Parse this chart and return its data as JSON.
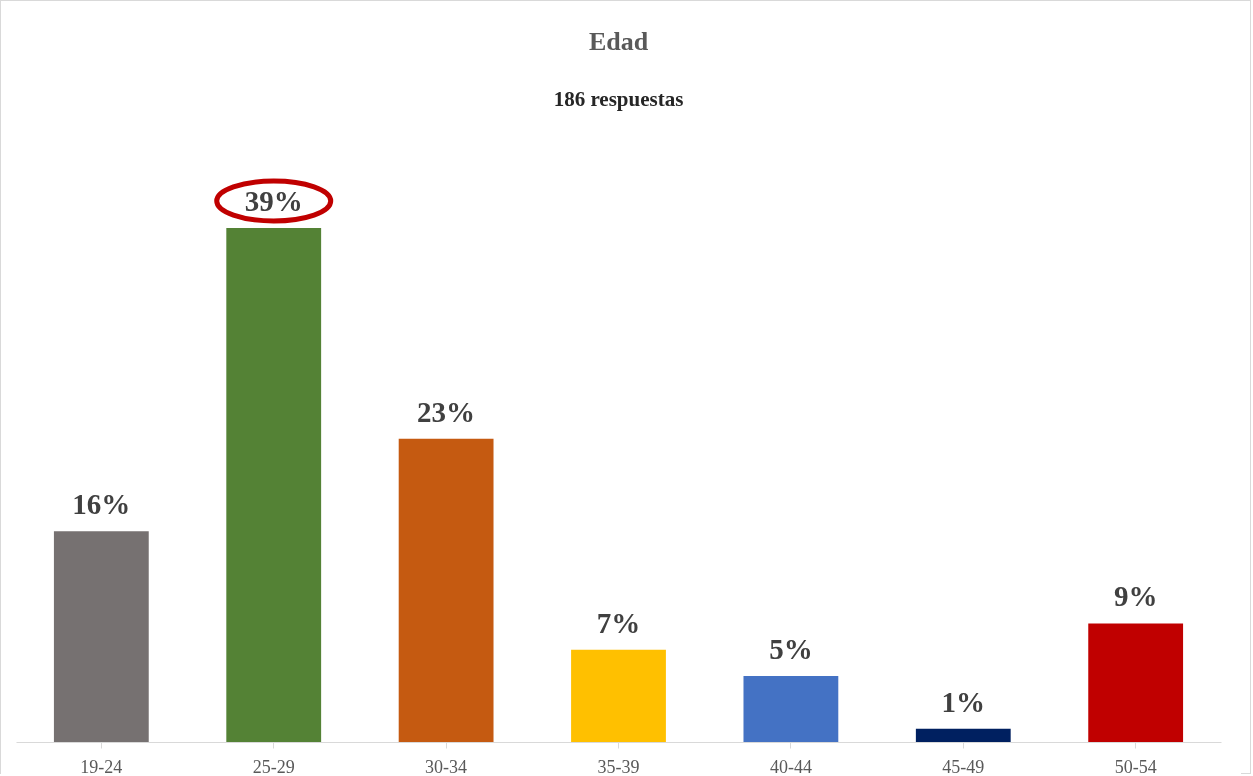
{
  "chart_data": {
    "type": "bar",
    "title": "Edad",
    "subtitle": "186 respuestas",
    "categories": [
      "19-24",
      "25-29",
      "30-34",
      "35-39",
      "40-44",
      "45-49",
      "50-54"
    ],
    "values": [
      16,
      39,
      23,
      7,
      5,
      1,
      9
    ],
    "colors": [
      "#767171",
      "#548235",
      "#c55a11",
      "#ffc000",
      "#4472c4",
      "#002060",
      "#c00000"
    ],
    "value_labels": [
      "16%",
      "39%",
      "23%",
      "7%",
      "5%",
      "1%",
      "9%"
    ],
    "grid": false
  }
}
